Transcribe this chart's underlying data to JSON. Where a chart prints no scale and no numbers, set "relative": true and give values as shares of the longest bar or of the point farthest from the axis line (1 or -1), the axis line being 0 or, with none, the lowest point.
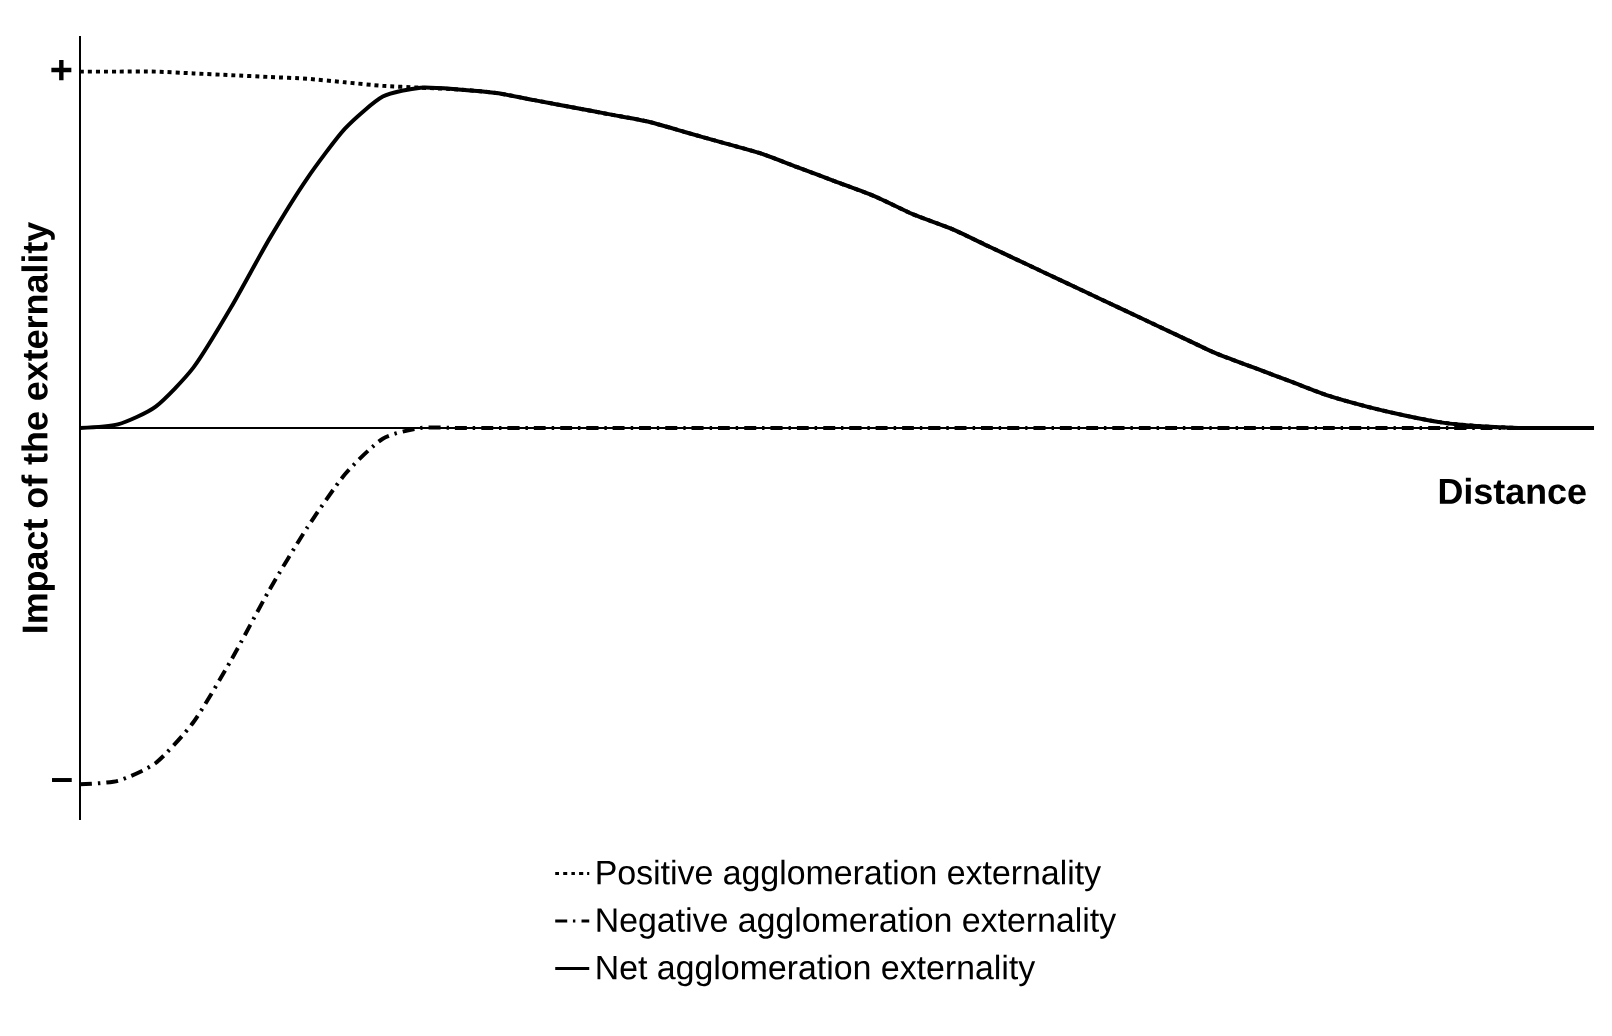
{
  "chart_data": {
    "type": "line",
    "xlabel": "Distance",
    "ylabel": "Impact of the externality",
    "categories": [
      null,
      null,
      null,
      null,
      null,
      null,
      null,
      null,
      null,
      null,
      null,
      null,
      null,
      null,
      null,
      null,
      null,
      null,
      null,
      null,
      null,
      null,
      null,
      null,
      null,
      null,
      null,
      null,
      null,
      null,
      null,
      null,
      null,
      null,
      null,
      null,
      null,
      null,
      null,
      null,
      null
    ],
    "relative": true,
    "annotations": [
      "+",
      "–"
    ],
    "legend": "bottom",
    "series": [
      {
        "name": "Positive agglomeration externality",
        "color": "#000000",
        "line_style": "dotted",
        "values": [
          1,
          1,
          1,
          0.995,
          0.99,
          0.985,
          0.98,
          0.97,
          0.96,
          0.955,
          0.95,
          0.94,
          0.92,
          0.9,
          0.88,
          0.86,
          0.83,
          0.8,
          0.77,
          0.73,
          0.69,
          0.65,
          0.6,
          0.56,
          0.51,
          0.46,
          0.41,
          0.36,
          0.31,
          0.26,
          0.21,
          0.17,
          0.13,
          0.09,
          0.06,
          0.035,
          0.015,
          0.005,
          0,
          0,
          0
        ]
      },
      {
        "name": "Negative agglomeration externality",
        "color": "#000000",
        "line_style": "dashed",
        "values": [
          -1,
          -0.99,
          -0.94,
          -0.825,
          -0.65,
          -0.455,
          -0.28,
          -0.13,
          -0.03,
          0,
          0,
          0,
          0,
          0,
          0,
          0,
          0,
          0,
          0,
          0,
          0,
          0,
          0,
          0,
          0,
          0,
          0,
          0,
          0,
          0,
          0,
          0,
          0,
          0,
          0,
          0,
          0,
          0,
          0,
          0,
          0
        ]
      },
      {
        "name": "Net agglomeration externality",
        "color": "#000000",
        "line_style": "solid",
        "values": [
          0,
          0.01,
          0.06,
          0.17,
          0.34,
          0.53,
          0.7,
          0.84,
          0.93,
          0.955,
          0.95,
          0.94,
          0.92,
          0.9,
          0.88,
          0.86,
          0.83,
          0.8,
          0.77,
          0.73,
          0.69,
          0.65,
          0.6,
          0.56,
          0.51,
          0.46,
          0.41,
          0.36,
          0.31,
          0.26,
          0.21,
          0.17,
          0.13,
          0.09,
          0.06,
          0.035,
          0.015,
          0.005,
          0,
          0,
          0
        ]
      }
    ]
  }
}
